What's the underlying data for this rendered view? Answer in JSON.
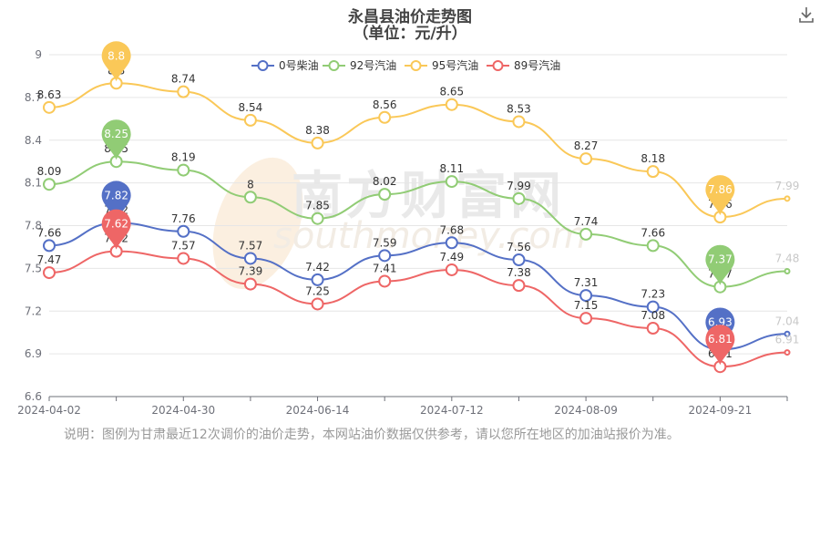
{
  "title": "永昌县油价走势图",
  "subtitle": "（单位：元/升）",
  "download_icon": "download-icon",
  "watermark": {
    "text_cn": "南方财富网",
    "text_en": "southmoney.com"
  },
  "note": "说明：图例为甘肃最近12次调价的油价走势，本网站油价数据仅供参考，请以您所在地区的加油站报价为准。",
  "chart_data": {
    "type": "line",
    "title": "永昌县油价走势图",
    "ylim": [
      6.6,
      9
    ],
    "y_ticks": [
      "9",
      "8.7",
      "8.4",
      "8.1",
      "7.8",
      "7.5",
      "7.2",
      "6.9",
      "6.6"
    ],
    "x_tick_labels": [
      "2024-04-02",
      "2024-04-30",
      "2024-06-14",
      "2024-07-12",
      "2024-08-09",
      "2024-09-21"
    ],
    "x_tick_index": [
      0,
      2,
      4,
      6,
      8,
      10
    ],
    "series": [
      {
        "name": "0号柴油",
        "color": "#5470c6",
        "values": [
          7.66,
          7.82,
          7.76,
          7.57,
          7.42,
          7.59,
          7.68,
          7.56,
          7.31,
          7.23,
          6.93,
          7.04
        ],
        "max_index": 1,
        "min_index": 10
      },
      {
        "name": "92号汽油",
        "color": "#91cc75",
        "values": [
          8.09,
          8.25,
          8.19,
          8.0,
          7.85,
          8.02,
          8.11,
          7.99,
          7.74,
          7.66,
          7.37,
          7.48
        ],
        "max_index": 1,
        "min_index": 10
      },
      {
        "name": "95号汽油",
        "color": "#fac858",
        "values": [
          8.63,
          8.8,
          8.74,
          8.54,
          8.38,
          8.56,
          8.65,
          8.53,
          8.27,
          8.18,
          7.86,
          7.99
        ],
        "max_index": 1,
        "min_index": 10
      },
      {
        "name": "89号汽油",
        "color": "#ee6666",
        "values": [
          7.47,
          7.62,
          7.57,
          7.39,
          7.25,
          7.41,
          7.49,
          7.38,
          7.15,
          7.08,
          6.81,
          6.91
        ],
        "max_index": 1,
        "min_index": 10
      }
    ],
    "labels": {
      "0号柴油": [
        "7.66",
        "7.82",
        "7.76",
        "7.57",
        "7.42",
        "7.59",
        "7.68",
        "7.56",
        "7.31",
        "7.23",
        "6.93",
        "7.04"
      ],
      "92号汽油": [
        "8.09",
        "8.25",
        "8.19",
        "8",
        "7.85",
        "8.02",
        "8.11",
        "7.99",
        "7.74",
        "7.66",
        "7.37",
        "7.48"
      ],
      "95号汽油": [
        "8.63",
        "8.8",
        "8.74",
        "8.54",
        "8.38",
        "8.56",
        "8.65",
        "8.53",
        "8.27",
        "8.18",
        "7.86",
        "7.99"
      ],
      "89号汽油": [
        "7.47",
        "7.62",
        "7.57",
        "7.39",
        "7.25",
        "7.41",
        "7.49",
        "7.38",
        "7.15",
        "7.08",
        "6.81",
        "6.91"
      ]
    },
    "legend_position": "top-center"
  }
}
